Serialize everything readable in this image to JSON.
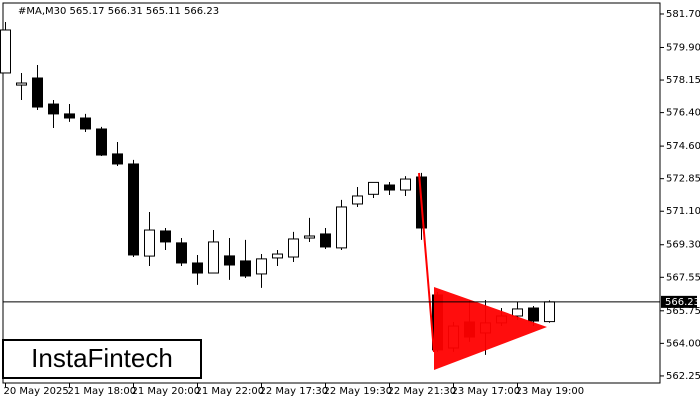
{
  "chart_data": {
    "type": "candlestick",
    "info": "#MA,M30  565.17 566.31 565.11 566.23",
    "watermark": "InstaFintech",
    "x": [
      "20 May 2025",
      null,
      null,
      null,
      "21 May 18:00",
      null,
      null,
      null,
      "21 May 20:00",
      null,
      null,
      null,
      "21 May 22:00",
      null,
      null,
      null,
      "22 May 17:30",
      null,
      null,
      null,
      "22 May 19:30",
      null,
      null,
      null,
      "22 May 21:30",
      null,
      null,
      null,
      "23 May 17:00",
      null,
      null,
      null,
      "23 May 19:00",
      null,
      null
    ],
    "open": [
      578.53,
      577.88,
      578.26,
      576.86,
      576.33,
      576.11,
      575.52,
      574.18,
      573.64,
      568.69,
      570.04,
      569.4,
      568.32,
      567.78,
      568.7,
      568.43,
      567.73,
      568.59,
      568.64,
      569.66,
      569.88,
      569.13,
      571.49,
      572.01,
      572.51,
      572.24,
      572.94,
      566.6,
      563.75,
      565.15,
      564.56,
      565.1,
      565.47,
      565.9,
      565.17
    ],
    "high": [
      581.27,
      578.53,
      578.96,
      577.08,
      576.86,
      576.33,
      575.63,
      574.82,
      573.86,
      571.06,
      570.2,
      569.66,
      568.75,
      570.09,
      569.66,
      569.56,
      568.8,
      569.02,
      569.99,
      570.74,
      570.2,
      571.71,
      572.4,
      572.67,
      572.67,
      572.99,
      573.16,
      566.76,
      565.15,
      566.33,
      566.33,
      565.9,
      566.22,
      566.01,
      566.31
    ],
    "low": [
      578.53,
      577.08,
      576.54,
      575.57,
      575.9,
      575.36,
      574.07,
      573.53,
      568.64,
      568.16,
      569.02,
      568.16,
      567.14,
      567.78,
      567.41,
      567.51,
      566.98,
      568.16,
      568.37,
      569.45,
      569.07,
      569.02,
      571.33,
      571.81,
      571.97,
      571.92,
      569.56,
      563.54,
      563.54,
      564.08,
      563.38,
      564.93,
      565.26,
      564.93,
      565.11
    ],
    "close": [
      580.84,
      577.99,
      576.7,
      576.33,
      576.11,
      575.52,
      574.12,
      573.64,
      568.75,
      570.09,
      569.45,
      568.32,
      567.78,
      569.45,
      568.21,
      567.62,
      568.54,
      568.8,
      569.61,
      569.77,
      569.18,
      571.33,
      571.92,
      572.65,
      572.24,
      572.83,
      570.2,
      563.65,
      564.93,
      564.34,
      565.1,
      565.47,
      565.85,
      565.2,
      566.23
    ],
    "last_price": 566.23,
    "ylim": [
      561.87,
      582.29
    ],
    "yticks": [
      {
        "value": 581.7,
        "label": "581.70"
      },
      {
        "value": 579.9,
        "label": "579.90"
      },
      578.15,
      {
        "value": 576.4,
        "label": "576.40"
      },
      {
        "value": 574.6,
        "label": "574.60"
      },
      572.85,
      {
        "value": 571.1,
        "label": "571.10"
      },
      {
        "value": 569.3,
        "label": "569.30"
      },
      567.55,
      565.75,
      {
        "value": 564,
        "label": "564.00"
      },
      562.25
    ],
    "up_color": "#ffffff",
    "down_color": "#000000",
    "pattern_color": "#ff0000"
  }
}
